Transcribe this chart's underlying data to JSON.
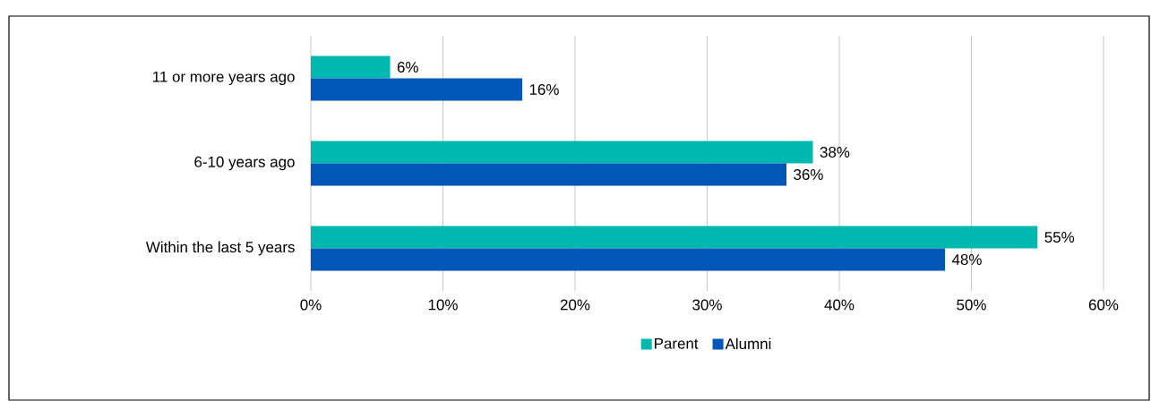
{
  "chart_data": {
    "type": "bar",
    "orientation": "horizontal",
    "categories": [
      "11 or more years ago",
      "6-10 years ago",
      "Within the last 5 years"
    ],
    "series": [
      {
        "name": "Parent",
        "color": "#00b8b0",
        "values": [
          6,
          38,
          55
        ],
        "value_labels": [
          "6%",
          "38%",
          "55%"
        ]
      },
      {
        "name": "Alumni",
        "color": "#0057b8",
        "values": [
          16,
          36,
          48
        ],
        "value_labels": [
          "16%",
          "36%",
          "48%"
        ]
      }
    ],
    "xlim": [
      0,
      60
    ],
    "xticks": [
      {
        "value": 0,
        "label": "0%"
      },
      {
        "value": 10,
        "label": "10%"
      },
      {
        "value": 20,
        "label": "20%"
      },
      {
        "value": 30,
        "label": "30%"
      },
      {
        "value": 40,
        "label": "40%"
      },
      {
        "value": 50,
        "label": "50%"
      },
      {
        "value": 60,
        "label": "60%"
      }
    ],
    "grid": "x",
    "legend": "bottom"
  }
}
